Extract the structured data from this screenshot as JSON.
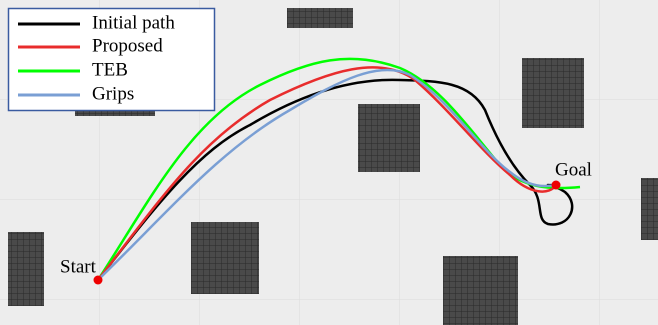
{
  "legend": {
    "items": [
      {
        "label": "Initial path"
      },
      {
        "label": "Proposed"
      },
      {
        "label": "TEB"
      },
      {
        "label": "Grips"
      }
    ]
  },
  "labels": {
    "start": "Start",
    "goal": "Goal"
  }
}
